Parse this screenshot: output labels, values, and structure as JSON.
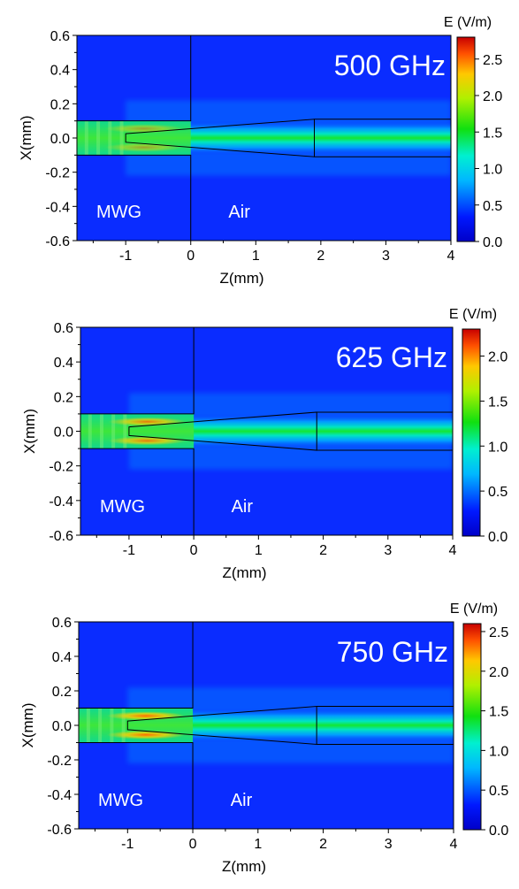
{
  "chart_data": [
    {
      "type": "heatmap",
      "freq_label": "500 GHz",
      "xlabel": "Z(mm)",
      "ylabel": "X(mm)",
      "colorbar_title": "E (V/m)",
      "xlim": [
        -1.75,
        4
      ],
      "ylim": [
        -0.6,
        0.6
      ],
      "xticks": [
        "-1",
        "0",
        "1",
        "2",
        "3",
        "4"
      ],
      "yticks": [
        "0.6",
        "0.4",
        "0.2",
        "0.0",
        "-0.2",
        "-0.4",
        "-0.6"
      ],
      "colorbar_range": [
        0,
        2.8
      ],
      "colorbar_ticks": [
        "0.0",
        "0.5",
        "1.0",
        "1.5",
        "2.0",
        "2.5"
      ],
      "regions": {
        "left": "MWG",
        "right": "Air"
      }
    },
    {
      "type": "heatmap",
      "freq_label": "625 GHz",
      "xlabel": "Z(mm)",
      "ylabel": "X(mm)",
      "colorbar_title": "E (V/m)",
      "xlim": [
        -1.75,
        4
      ],
      "ylim": [
        -0.6,
        0.6
      ],
      "xticks": [
        "-1",
        "0",
        "1",
        "2",
        "3",
        "4"
      ],
      "yticks": [
        "0.6",
        "0.4",
        "0.2",
        "0.0",
        "-0.2",
        "-0.4",
        "-0.6"
      ],
      "colorbar_range": [
        0,
        2.3
      ],
      "colorbar_ticks": [
        "0.0",
        "0.5",
        "1.0",
        "1.5",
        "2.0"
      ],
      "regions": {
        "left": "MWG",
        "right": "Air"
      }
    },
    {
      "type": "heatmap",
      "freq_label": "750 GHz",
      "xlabel": "Z(mm)",
      "ylabel": "X(mm)",
      "colorbar_title": "E (V/m)",
      "xlim": [
        -1.75,
        4
      ],
      "ylim": [
        -0.6,
        0.6
      ],
      "xticks": [
        "-1",
        "0",
        "1",
        "2",
        "3",
        "4"
      ],
      "yticks": [
        "0.6",
        "0.4",
        "0.2",
        "0.0",
        "-0.2",
        "-0.4",
        "-0.6"
      ],
      "colorbar_range": [
        0,
        2.6
      ],
      "colorbar_ticks": [
        "0.0",
        "0.5",
        "1.0",
        "1.5",
        "2.0",
        "2.5"
      ],
      "regions": {
        "left": "MWG",
        "right": "Air"
      }
    }
  ],
  "geometry": {
    "waveguide_half_height": 0.1,
    "waveguide_end_z": 0,
    "taper_tip_z": -1.0,
    "taper_tip_half_width": 0.025,
    "taper_base_z": 1.9,
    "taper_base_half_width": 0.11
  },
  "colors": {
    "background_field": "#0a2cff",
    "outline": "#000000",
    "label_text": "#ffffff"
  }
}
